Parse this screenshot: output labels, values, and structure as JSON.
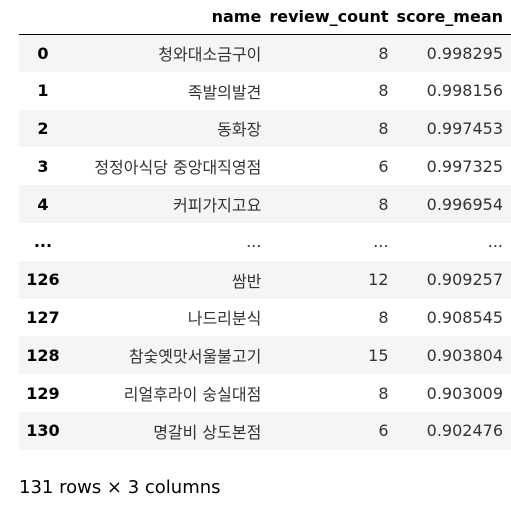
{
  "table": {
    "columns": [
      "",
      "name",
      "review_count",
      "score_mean"
    ],
    "rows": [
      {
        "index": "0",
        "name": "청와대소금구이",
        "review_count": "8",
        "score_mean": "0.998295"
      },
      {
        "index": "1",
        "name": "족발의발견",
        "review_count": "8",
        "score_mean": "0.998156"
      },
      {
        "index": "2",
        "name": "동화장",
        "review_count": "8",
        "score_mean": "0.997453"
      },
      {
        "index": "3",
        "name": "정정아식당 중앙대직영점",
        "review_count": "6",
        "score_mean": "0.997325"
      },
      {
        "index": "4",
        "name": "커피가지고요",
        "review_count": "8",
        "score_mean": "0.996954"
      },
      {
        "index": "...",
        "name": "...",
        "review_count": "...",
        "score_mean": "..."
      },
      {
        "index": "126",
        "name": "쌈반",
        "review_count": "12",
        "score_mean": "0.909257"
      },
      {
        "index": "127",
        "name": "나드리분식",
        "review_count": "8",
        "score_mean": "0.908545"
      },
      {
        "index": "128",
        "name": "참숯옛맛서울불고기",
        "review_count": "15",
        "score_mean": "0.903804"
      },
      {
        "index": "129",
        "name": "리얼후라이 숭실대점",
        "review_count": "8",
        "score_mean": "0.903009"
      },
      {
        "index": "130",
        "name": "명갈비 상도본점",
        "review_count": "6",
        "score_mean": "0.902476"
      }
    ]
  },
  "footer": {
    "summary": "131 rows × 3 columns"
  }
}
